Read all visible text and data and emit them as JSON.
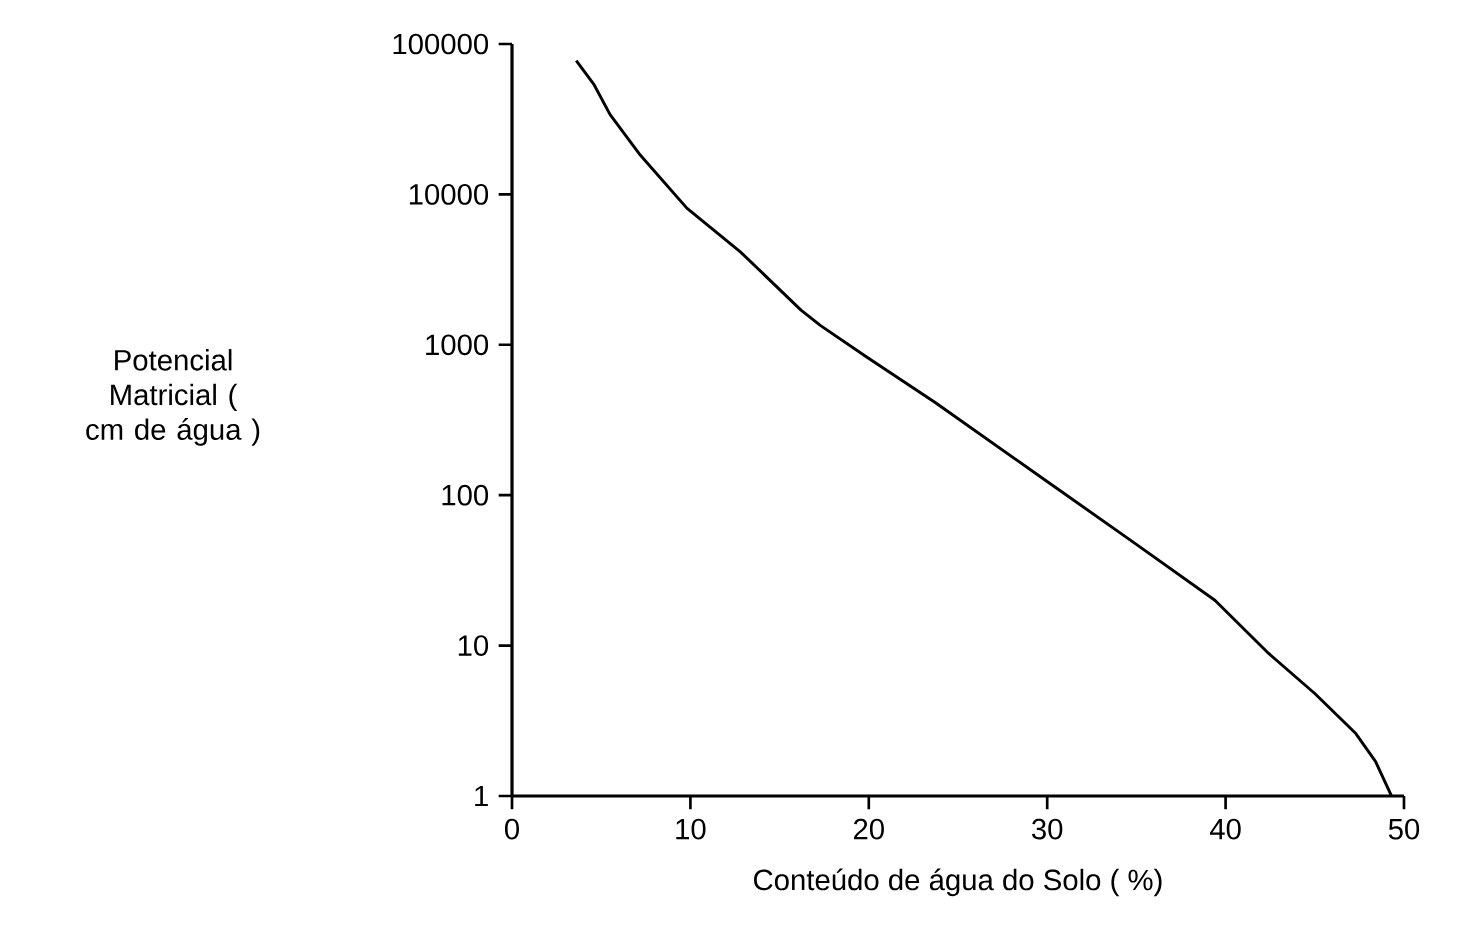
{
  "chart_data": {
    "type": "line",
    "xlabel": "Conteúdo de água do Solo ( %)",
    "ylabel": "Potencial Matricial ( cm de água )",
    "log": "y",
    "color": "#000000",
    "marker": "none",
    "line_style": "solid",
    "x": [
      3.6,
      4.6,
      5.5,
      7.2,
      9.8,
      12.8,
      16.2,
      17.3,
      19.9,
      23.7,
      29.3,
      34.9,
      39.4,
      42.4,
      45.0,
      47.3,
      48.4,
      49.3
    ],
    "values": [
      77600,
      53600,
      33900,
      18200,
      8100,
      4150,
      1700,
      1340,
      826,
      415,
      141,
      48,
      20,
      8.9,
      4.8,
      2.6,
      1.7,
      1
    ],
    "xlim": [
      0,
      50
    ],
    "ylim": [
      1,
      100000
    ],
    "xticks": [
      0,
      10,
      20,
      30,
      40,
      50
    ],
    "yticks": [
      1,
      10,
      100,
      1000,
      10000,
      100000
    ]
  }
}
